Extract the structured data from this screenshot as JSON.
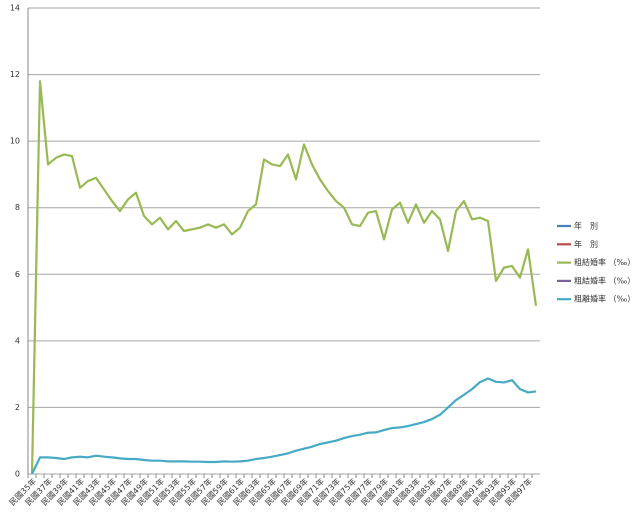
{
  "chart_data": {
    "type": "line",
    "categories": [
      "民國35年",
      null,
      "民國37年",
      null,
      "民國39年",
      null,
      "民國41年",
      null,
      "民國43年",
      null,
      "民國45年",
      null,
      "民國47年",
      null,
      "民國49年",
      null,
      "民國51年",
      null,
      "民國53年",
      null,
      "民國55年",
      null,
      "民國57年",
      null,
      "民國59年",
      null,
      "民國61年",
      null,
      "民國63年",
      null,
      "民國65年",
      null,
      "民國67年",
      null,
      "民國69年",
      null,
      "民國71年",
      null,
      "民國73年",
      null,
      "民國75年",
      null,
      "民國77年",
      null,
      "民國79年",
      null,
      "民國81年",
      null,
      "民國83年",
      null,
      "民國85年",
      null,
      "民國87年",
      null,
      "民國89年",
      null,
      "民國91年",
      null,
      "民國93年",
      null,
      "民國95年",
      null,
      "民國97年",
      null
    ],
    "series": [
      {
        "name": "年　別",
        "color": "#4a7ebb",
        "values": [
          null,
          null,
          null,
          null,
          null,
          null,
          null,
          null,
          null,
          null,
          null,
          null,
          null,
          null,
          null,
          null,
          null,
          null,
          null,
          null,
          null,
          null,
          null,
          null,
          null,
          null,
          null,
          null,
          null,
          null,
          null,
          null,
          null,
          null,
          null,
          null,
          null,
          null,
          null,
          null,
          null,
          null,
          null,
          null,
          null,
          null,
          null,
          null,
          null,
          null,
          null,
          null,
          null,
          null,
          null,
          null,
          null,
          null,
          null,
          null,
          null,
          null,
          null,
          null
        ]
      },
      {
        "name": "年　別",
        "color": "#be4b48",
        "values": [
          null,
          null,
          null,
          null,
          null,
          null,
          null,
          null,
          null,
          null,
          null,
          null,
          null,
          null,
          null,
          null,
          null,
          null,
          null,
          null,
          null,
          null,
          null,
          null,
          null,
          null,
          null,
          null,
          null,
          null,
          null,
          null,
          null,
          null,
          null,
          null,
          null,
          null,
          null,
          null,
          null,
          null,
          null,
          null,
          null,
          null,
          null,
          null,
          null,
          null,
          null,
          null,
          null,
          null,
          null,
          null,
          null,
          null,
          null,
          null,
          null,
          null,
          null,
          null
        ]
      },
      {
        "name": "粗結婚率 （‰）",
        "color": "#98b954",
        "values": [
          0,
          11.8,
          9.3,
          9.5,
          9.6,
          9.55,
          8.6,
          8.8,
          8.9,
          8.55,
          8.2,
          7.9,
          8.25,
          8.45,
          7.75,
          7.5,
          7.7,
          7.35,
          7.6,
          7.3,
          7.35,
          7.4,
          7.5,
          7.4,
          7.5,
          7.2,
          7.4,
          7.9,
          8.1,
          9.45,
          9.3,
          9.25,
          9.6,
          8.85,
          9.9,
          9.3,
          8.85,
          8.5,
          8.2,
          8.0,
          7.5,
          7.45,
          7.85,
          7.9,
          7.05,
          7.95,
          8.15,
          7.55,
          8.1,
          7.55,
          7.9,
          7.65,
          6.7,
          7.9,
          8.2,
          7.65,
          7.7,
          7.6,
          5.8,
          6.2,
          6.25,
          5.9,
          6.75,
          5.05
        ]
      },
      {
        "name": "粗結婚率 （‰）",
        "color": "#7d60a0",
        "values": [
          null,
          null,
          null,
          null,
          null,
          null,
          null,
          null,
          null,
          null,
          null,
          null,
          null,
          null,
          null,
          null,
          null,
          null,
          null,
          null,
          null,
          null,
          null,
          null,
          null,
          null,
          null,
          null,
          null,
          null,
          null,
          null,
          null,
          null,
          null,
          null,
          null,
          null,
          null,
          null,
          null,
          null,
          null,
          null,
          null,
          null,
          null,
          null,
          null,
          null,
          null,
          null,
          null,
          null,
          null,
          null,
          null,
          null,
          null,
          null,
          null,
          null,
          null,
          null
        ]
      },
      {
        "name": "粗離婚率 （‰）",
        "color": "#46aac5",
        "values": [
          0,
          0.5,
          0.5,
          0.48,
          0.45,
          0.5,
          0.52,
          0.5,
          0.55,
          0.52,
          0.5,
          0.47,
          0.45,
          0.45,
          0.42,
          0.4,
          0.4,
          0.38,
          0.38,
          0.38,
          0.37,
          0.37,
          0.36,
          0.36,
          0.38,
          0.37,
          0.38,
          0.4,
          0.45,
          0.48,
          0.52,
          0.57,
          0.62,
          0.7,
          0.76,
          0.82,
          0.9,
          0.95,
          1.0,
          1.08,
          1.14,
          1.18,
          1.24,
          1.25,
          1.32,
          1.38,
          1.4,
          1.44,
          1.5,
          1.56,
          1.65,
          1.78,
          2.0,
          2.22,
          2.38,
          2.55,
          2.76,
          2.87,
          2.77,
          2.75,
          2.82,
          2.55,
          2.45,
          2.48
        ]
      }
    ],
    "ylim": [
      0,
      14
    ],
    "yticks": [
      0,
      2,
      4,
      6,
      8,
      10,
      12,
      14
    ],
    "grid": true,
    "legend": "right"
  }
}
